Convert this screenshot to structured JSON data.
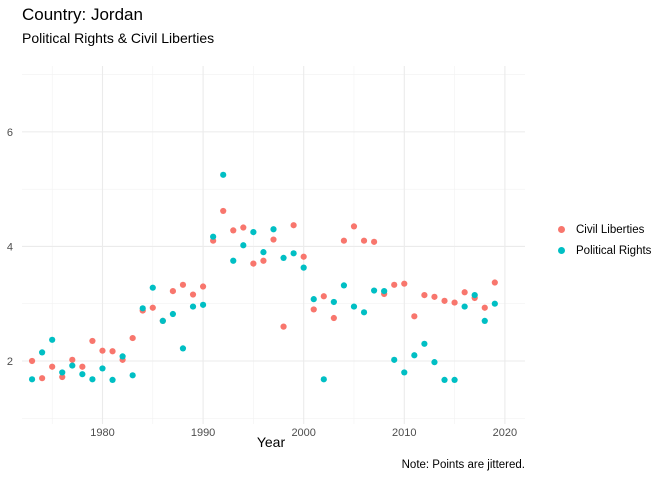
{
  "title": "Country: Jordan",
  "subtitle": "Political Rights & Civil Liberties",
  "caption": "Note: Points are jittered.",
  "legend": {
    "items": [
      {
        "label": "Civil Liberties",
        "color": "#F8766D"
      },
      {
        "label": "Political Rights",
        "color": "#00BFC4"
      }
    ]
  },
  "chart_data": {
    "type": "scatter",
    "title": "Country: Jordan",
    "subtitle": "Political Rights & Civil Liberties",
    "xlabel": "Year",
    "ylabel": "",
    "xlim": [
      1972,
      2022
    ],
    "ylim": [
      0.9,
      7.15
    ],
    "xticks": [
      1980,
      1990,
      2000,
      2010,
      2020
    ],
    "yticks": [
      2,
      4,
      6
    ],
    "grid": true,
    "legend_position": "right",
    "series": [
      {
        "name": "Civil Liberties",
        "color": "#F8766D",
        "points": [
          [
            1973,
            2.0
          ],
          [
            1974,
            1.7
          ],
          [
            1975,
            1.9
          ],
          [
            1976,
            1.72
          ],
          [
            1977,
            2.02
          ],
          [
            1978,
            1.9
          ],
          [
            1979,
            2.35
          ],
          [
            1980,
            2.18
          ],
          [
            1981,
            2.17
          ],
          [
            1982,
            2.02
          ],
          [
            1983,
            2.4
          ],
          [
            1984,
            2.88
          ],
          [
            1985,
            2.93
          ],
          [
            1986,
            2.7
          ],
          [
            1987,
            3.22
          ],
          [
            1988,
            3.33
          ],
          [
            1989,
            3.16
          ],
          [
            1990,
            3.3
          ],
          [
            1991,
            4.1
          ],
          [
            1992,
            4.62
          ],
          [
            1993,
            4.28
          ],
          [
            1994,
            4.33
          ],
          [
            1995,
            3.7
          ],
          [
            1996,
            3.75
          ],
          [
            1997,
            4.12
          ],
          [
            1998,
            2.6
          ],
          [
            1999,
            4.37
          ],
          [
            2000,
            3.82
          ],
          [
            2001,
            2.9
          ],
          [
            2002,
            3.13
          ],
          [
            2003,
            2.75
          ],
          [
            2004,
            4.1
          ],
          [
            2005,
            4.35
          ],
          [
            2006,
            4.1
          ],
          [
            2007,
            4.08
          ],
          [
            2008,
            3.17
          ],
          [
            2009,
            3.33
          ],
          [
            2010,
            3.35
          ],
          [
            2011,
            2.78
          ],
          [
            2012,
            3.15
          ],
          [
            2013,
            3.12
          ],
          [
            2014,
            3.05
          ],
          [
            2015,
            3.02
          ],
          [
            2016,
            3.2
          ],
          [
            2017,
            3.1
          ],
          [
            2018,
            2.93
          ],
          [
            2019,
            3.37
          ]
        ]
      },
      {
        "name": "Political Rights",
        "color": "#00BFC4",
        "points": [
          [
            1973,
            1.68
          ],
          [
            1974,
            2.15
          ],
          [
            1975,
            2.37
          ],
          [
            1976,
            1.8
          ],
          [
            1977,
            1.92
          ],
          [
            1978,
            1.77
          ],
          [
            1979,
            1.68
          ],
          [
            1980,
            1.87
          ],
          [
            1981,
            1.67
          ],
          [
            1982,
            2.08
          ],
          [
            1983,
            1.75
          ],
          [
            1984,
            2.92
          ],
          [
            1985,
            3.28
          ],
          [
            1986,
            2.7
          ],
          [
            1987,
            2.82
          ],
          [
            1988,
            2.22
          ],
          [
            1989,
            2.95
          ],
          [
            1990,
            2.98
          ],
          [
            1991,
            4.17
          ],
          [
            1992,
            5.25
          ],
          [
            1993,
            3.75
          ],
          [
            1994,
            4.02
          ],
          [
            1995,
            4.25
          ],
          [
            1996,
            3.9
          ],
          [
            1997,
            4.3
          ],
          [
            1998,
            3.8
          ],
          [
            1999,
            3.88
          ],
          [
            2000,
            3.63
          ],
          [
            2001,
            3.08
          ],
          [
            2002,
            1.68
          ],
          [
            2003,
            3.03
          ],
          [
            2004,
            3.32
          ],
          [
            2005,
            2.95
          ],
          [
            2006,
            2.85
          ],
          [
            2007,
            3.23
          ],
          [
            2008,
            3.22
          ],
          [
            2009,
            2.02
          ],
          [
            2010,
            1.8
          ],
          [
            2011,
            2.1
          ],
          [
            2012,
            2.3
          ],
          [
            2013,
            1.98
          ],
          [
            2014,
            1.67
          ],
          [
            2015,
            1.67
          ],
          [
            2016,
            2.95
          ],
          [
            2017,
            3.15
          ],
          [
            2018,
            2.7
          ],
          [
            2019,
            3.0
          ]
        ]
      }
    ]
  }
}
